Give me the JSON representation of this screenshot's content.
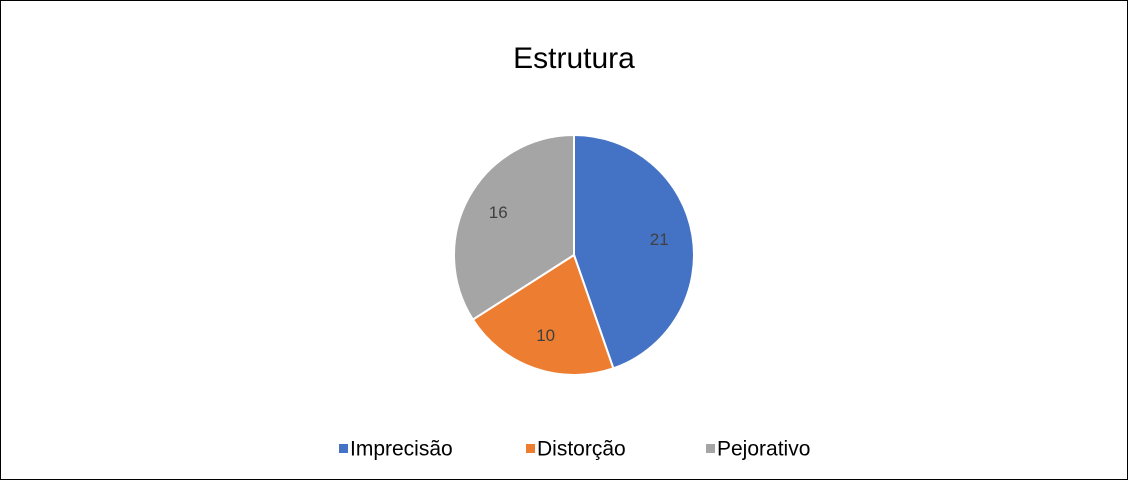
{
  "chart_data": {
    "type": "pie",
    "title": "Estrutura",
    "categories": [
      "Imprecisão",
      "Distorção",
      "Pejorativo"
    ],
    "values": [
      21,
      10,
      16
    ],
    "colors": [
      "#4472c4",
      "#ed7d31",
      "#a5a5a5"
    ],
    "legend": "bottom"
  }
}
